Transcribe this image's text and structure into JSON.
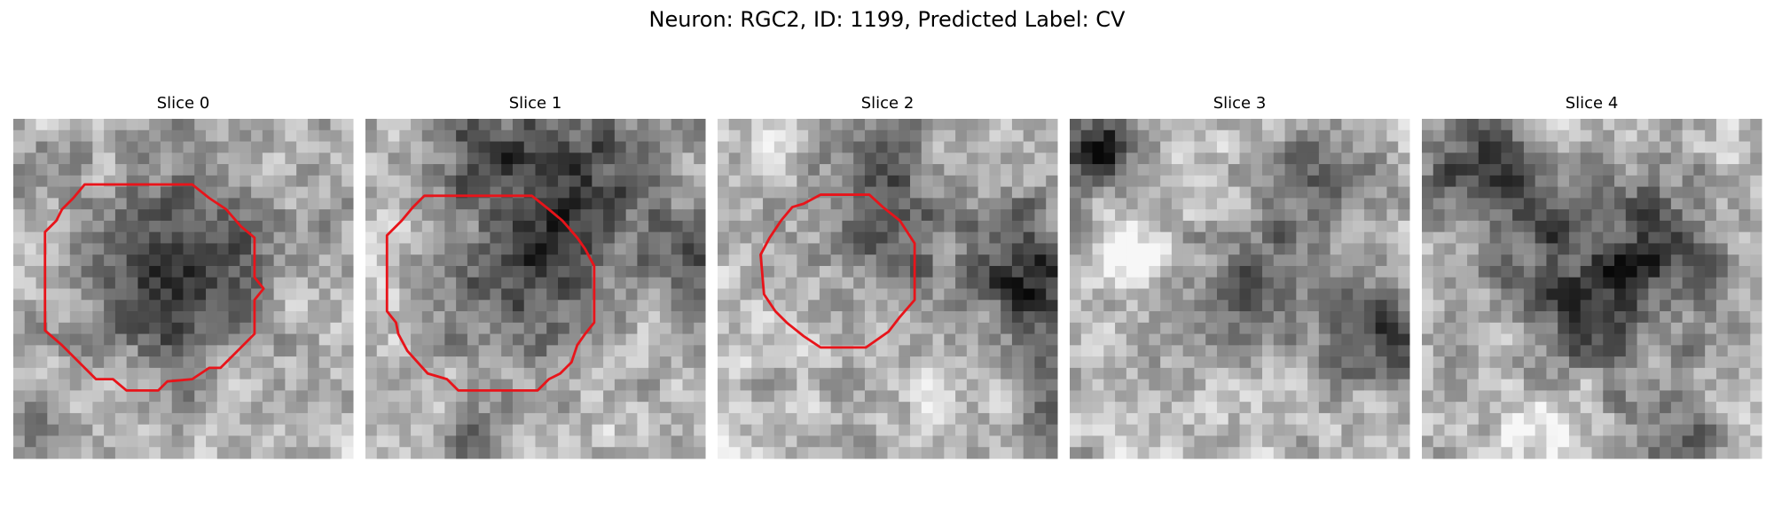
{
  "title": "Neuron: RGC2, ID: 1199, Predicted Label: CV",
  "panels": [
    {
      "title": "Slice 0"
    },
    {
      "title": "Slice 1"
    },
    {
      "title": "Slice 2"
    },
    {
      "title": "Slice 3"
    },
    {
      "title": "Slice 4"
    }
  ]
}
